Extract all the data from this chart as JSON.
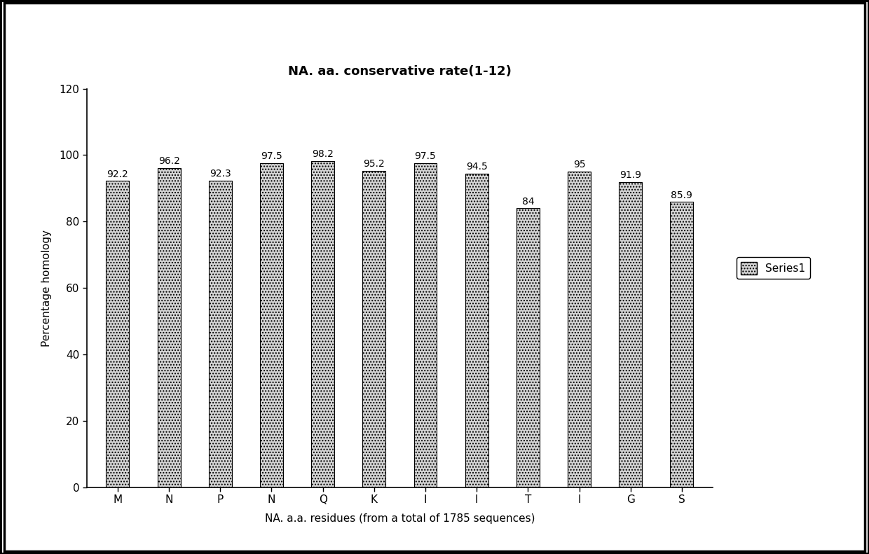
{
  "title": "NA. aa. conservative rate(1-12)",
  "xlabel": "NA. a.a. residues (from a total of 1785 sequences)",
  "ylabel": "Percentage homology",
  "categories": [
    "M",
    "N",
    "P",
    "N",
    "Q",
    "K",
    "I",
    "I",
    "T",
    "I",
    "G",
    "S"
  ],
  "values": [
    92.2,
    96.2,
    92.3,
    97.5,
    98.2,
    95.2,
    97.5,
    94.5,
    84.0,
    95.0,
    91.9,
    85.9
  ],
  "ylim": [
    0,
    120
  ],
  "yticks": [
    0,
    20,
    40,
    60,
    80,
    100,
    120
  ],
  "bar_color": "#d4d4d4",
  "bar_edgecolor": "#000000",
  "bar_hatch": "....",
  "legend_label": "Series1",
  "title_fontsize": 13,
  "label_fontsize": 11,
  "tick_fontsize": 11,
  "value_fontsize": 10,
  "background_color": "#ffffff",
  "figsize": [
    12.4,
    7.91
  ],
  "dpi": 100,
  "bar_width": 0.45,
  "outer_border_color": "#000000",
  "outer_border_linewidth": 2.5
}
